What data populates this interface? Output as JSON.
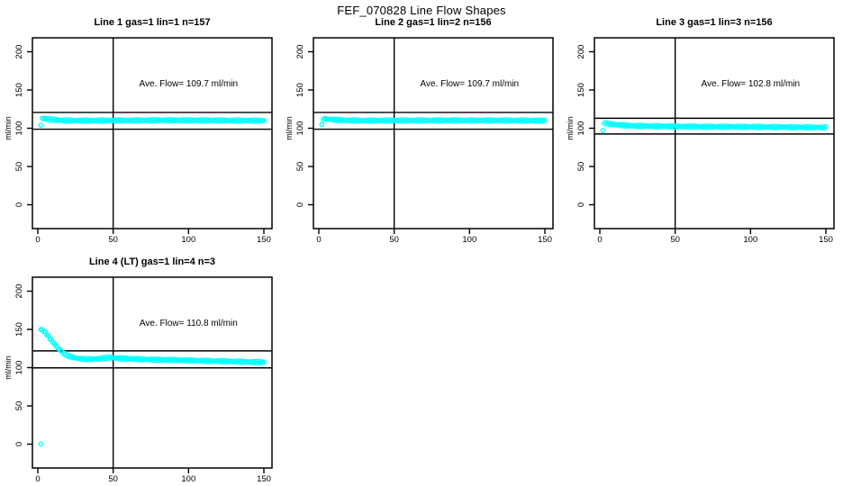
{
  "figure": {
    "title": "FEF_070828  Line Flow Shapes"
  },
  "colors": {
    "marker": "#00FFFF",
    "axis": "#000000",
    "background": "#FFFFFF"
  },
  "chart_data": [
    {
      "type": "scatter",
      "title": "Line 1 gas=1 lin=1 n=157",
      "n": 157,
      "gas": 1,
      "lin": 1,
      "ave_flow": 109.7,
      "annotation": "Ave. Flow=  109.7  ml/min",
      "ylabel": "ml/min",
      "xlim": [
        -4,
        155
      ],
      "ylim": [
        -30,
        219
      ],
      "xticks": [
        0,
        50,
        100,
        150
      ],
      "yticks": [
        0,
        50,
        100,
        150,
        200
      ],
      "vline_x": 50,
      "ref_lines_y": [
        120.7,
        98.7
      ],
      "points": [
        [
          3,
          113
        ],
        [
          5,
          112.5
        ],
        [
          8,
          111.5
        ],
        [
          12,
          110.8
        ],
        [
          18,
          110.2
        ],
        [
          30,
          110
        ],
        [
          50,
          110.2
        ],
        [
          80,
          110.4
        ],
        [
          110,
          110.3
        ],
        [
          130,
          110.1
        ],
        [
          150,
          110
        ]
      ],
      "outlier_points": [
        [
          2,
          104
        ]
      ]
    },
    {
      "type": "scatter",
      "title": "Line 2 gas=1 lin=2 n=156",
      "n": 156,
      "gas": 1,
      "lin": 2,
      "ave_flow": 109.7,
      "annotation": "Ave. Flow=  109.7  ml/min",
      "ylabel": "ml/min",
      "xlim": [
        -4,
        155
      ],
      "ylim": [
        -30,
        219
      ],
      "xticks": [
        0,
        50,
        100,
        150
      ],
      "yticks": [
        0,
        50,
        100,
        150,
        200
      ],
      "vline_x": 50,
      "ref_lines_y": [
        120.7,
        98.7
      ],
      "points": [
        [
          3,
          112.5
        ],
        [
          6,
          112
        ],
        [
          10,
          111.2
        ],
        [
          16,
          110.5
        ],
        [
          30,
          110
        ],
        [
          60,
          110.2
        ],
        [
          90,
          110.3
        ],
        [
          120,
          110.2
        ],
        [
          150,
          110
        ]
      ],
      "outlier_points": [
        [
          2,
          105
        ]
      ]
    },
    {
      "type": "scatter",
      "title": "Line 3 gas=1 lin=3 n=156",
      "n": 156,
      "gas": 1,
      "lin": 3,
      "ave_flow": 102.8,
      "annotation": "Ave. Flow=  102.8  ml/min",
      "ylabel": "ml/min",
      "xlim": [
        -4,
        155
      ],
      "ylim": [
        -30,
        219
      ],
      "xticks": [
        0,
        50,
        100,
        150
      ],
      "yticks": [
        0,
        50,
        100,
        150,
        200
      ],
      "vline_x": 50,
      "ref_lines_y": [
        113.1,
        92.5
      ],
      "points": [
        [
          3,
          107
        ],
        [
          6,
          106
        ],
        [
          10,
          104.8
        ],
        [
          16,
          103.8
        ],
        [
          25,
          103
        ],
        [
          40,
          102.5
        ],
        [
          70,
          102
        ],
        [
          100,
          101.8
        ],
        [
          130,
          101.3
        ],
        [
          150,
          101
        ]
      ],
      "outlier_points": [
        [
          2,
          97
        ]
      ]
    },
    {
      "type": "scatter",
      "title": "Line 4 (LT) gas=1 lin=4 n=3",
      "n": 3,
      "gas": 1,
      "lin": 4,
      "ave_flow": 110.8,
      "annotation": "Ave. Flow=  110.8  ml/min",
      "ylabel": "ml/min",
      "xlim": [
        -4,
        155
      ],
      "ylim": [
        -30,
        219
      ],
      "xticks": [
        0,
        50,
        100,
        150
      ],
      "yticks": [
        0,
        50,
        100,
        150,
        200
      ],
      "vline_x": 50,
      "ref_lines_y": [
        121.9,
        99.7
      ],
      "points": [
        [
          2,
          150
        ],
        [
          3,
          149
        ],
        [
          5,
          146
        ],
        [
          7,
          141
        ],
        [
          9,
          136
        ],
        [
          11,
          131
        ],
        [
          13,
          126.5
        ],
        [
          15,
          122.5
        ],
        [
          17,
          119
        ],
        [
          19,
          116.5
        ],
        [
          22,
          114
        ],
        [
          26,
          112.3
        ],
        [
          30,
          111.3
        ],
        [
          34,
          111
        ],
        [
          38,
          111.3
        ],
        [
          42,
          112
        ],
        [
          46,
          113
        ],
        [
          49,
          113
        ],
        [
          53,
          112.3
        ],
        [
          58,
          111.8
        ],
        [
          65,
          111.3
        ],
        [
          75,
          110.6
        ],
        [
          85,
          110.2
        ],
        [
          95,
          109.7
        ],
        [
          105,
          109.2
        ],
        [
          115,
          108.7
        ],
        [
          125,
          108.3
        ],
        [
          135,
          107.8
        ],
        [
          150,
          107
        ]
      ],
      "outlier_points": [
        [
          2,
          0
        ]
      ]
    }
  ]
}
